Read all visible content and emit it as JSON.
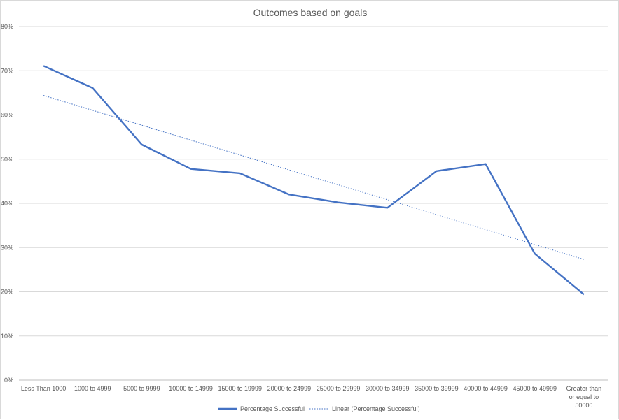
{
  "chart_data": {
    "type": "line",
    "title": "Outcomes based on goals",
    "categories": [
      "Less Than 1000",
      "1000 to 4999",
      "5000 to 9999",
      "10000 to 14999",
      "15000 to 19999",
      "20000 to 24999",
      "25000 to 29999",
      "30000 to 34999",
      "35000 to 39999",
      "40000 to 44999",
      "45000 to 49999",
      "Greater than or equal to 50000"
    ],
    "series": [
      {
        "name": "Percentage Successful",
        "color": "#4472c4",
        "style": "solid",
        "values": [
          71.1,
          66.1,
          53.3,
          47.8,
          46.8,
          42.0,
          40.2,
          39.0,
          47.3,
          48.9,
          28.6,
          19.4
        ]
      },
      {
        "name": "Linear (Percentage Successful)",
        "color": "#4472c4",
        "style": "dotted",
        "trendline_of": "Percentage Successful"
      }
    ],
    "y_ticks": [
      "0%",
      "10%",
      "20%",
      "30%",
      "40%",
      "50%",
      "60%",
      "70%",
      "80%"
    ],
    "ylim": [
      0,
      80
    ],
    "grid": true,
    "legend_position": "bottom"
  }
}
